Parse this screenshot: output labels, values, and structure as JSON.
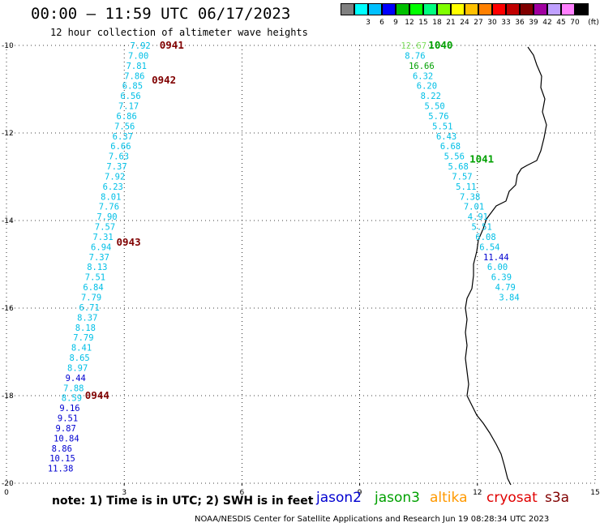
{
  "header": {
    "title": "00:00 – 11:59 UTC 06/17/2023",
    "subtitle": "12 hour collection of altimeter wave heights"
  },
  "scale": {
    "unit": "(ft)",
    "bins": [
      {
        "label": "",
        "color": "#808080"
      },
      {
        "label": "3",
        "color": "#00ffff"
      },
      {
        "label": "6",
        "color": "#00c0ff"
      },
      {
        "label": "9",
        "color": "#0000ff"
      },
      {
        "label": "12",
        "color": "#00c000"
      },
      {
        "label": "15",
        "color": "#00ff00"
      },
      {
        "label": "18",
        "color": "#00ff80"
      },
      {
        "label": "21",
        "color": "#80ff00"
      },
      {
        "label": "24",
        "color": "#ffff00"
      },
      {
        "label": "27",
        "color": "#ffc000"
      },
      {
        "label": "30",
        "color": "#ff8000"
      },
      {
        "label": "33",
        "color": "#ff0000"
      },
      {
        "label": "36",
        "color": "#c00000"
      },
      {
        "label": "39",
        "color": "#800000"
      },
      {
        "label": "42",
        "color": "#a000a0"
      },
      {
        "label": "45",
        "color": "#c0a0ff"
      },
      {
        "label": "70",
        "color": "#ff80ff"
      },
      {
        "label": "",
        "color": "#000000"
      }
    ]
  },
  "axes": {
    "lon_ticks": [
      0,
      3,
      6,
      9,
      12,
      15
    ],
    "lat_ticks": [
      -10,
      -12,
      -14,
      -16,
      -18,
      -20
    ]
  },
  "colors": {
    "cyan": "#00bfe6",
    "blue": "#0000d0",
    "lightgreen": "#80e060",
    "green": "#00a000",
    "darkred": "#800000"
  },
  "track_times": [
    {
      "text": "0941",
      "lon": 3.9,
      "lat": -10.0,
      "color": "darkred"
    },
    {
      "text": "0942",
      "lon": 3.7,
      "lat": -10.8,
      "color": "darkred"
    },
    {
      "text": "0943",
      "lon": 2.8,
      "lat": -14.5,
      "color": "darkred"
    },
    {
      "text": "0944",
      "lon": 2.0,
      "lat": -18.0,
      "color": "darkred"
    },
    {
      "text": "1040",
      "lon": 10.75,
      "lat": -10.0,
      "color": "green"
    },
    {
      "text": "1041",
      "lon": 11.8,
      "lat": -12.6,
      "color": "green"
    }
  ],
  "track_west": [
    {
      "text": "7.92",
      "lon": 3.15,
      "lat": -10.0,
      "color": "cyan"
    },
    {
      "text": "7.00",
      "lon": 3.1,
      "lat": -10.23,
      "color": "cyan"
    },
    {
      "text": "7.81",
      "lon": 3.05,
      "lat": -10.46,
      "color": "cyan"
    },
    {
      "text": "7.86",
      "lon": 3.0,
      "lat": -10.69,
      "color": "cyan"
    },
    {
      "text": "6.85",
      "lon": 2.95,
      "lat": -10.92,
      "color": "cyan"
    },
    {
      "text": "6.56",
      "lon": 2.9,
      "lat": -11.15,
      "color": "cyan"
    },
    {
      "text": "7.17",
      "lon": 2.85,
      "lat": -11.38,
      "color": "cyan"
    },
    {
      "text": "6.86",
      "lon": 2.8,
      "lat": -11.61,
      "color": "cyan"
    },
    {
      "text": "7.56",
      "lon": 2.75,
      "lat": -11.84,
      "color": "cyan"
    },
    {
      "text": "6.37",
      "lon": 2.7,
      "lat": -12.07,
      "color": "cyan"
    },
    {
      "text": "6.66",
      "lon": 2.65,
      "lat": -12.3,
      "color": "cyan"
    },
    {
      "text": "7.63",
      "lon": 2.6,
      "lat": -12.53,
      "color": "cyan"
    },
    {
      "text": "7.37",
      "lon": 2.55,
      "lat": -12.76,
      "color": "cyan"
    },
    {
      "text": "7.92",
      "lon": 2.5,
      "lat": -12.99,
      "color": "cyan"
    },
    {
      "text": "6.23",
      "lon": 2.45,
      "lat": -13.22,
      "color": "cyan"
    },
    {
      "text": "8.01",
      "lon": 2.4,
      "lat": -13.45,
      "color": "cyan"
    },
    {
      "text": "7.76",
      "lon": 2.35,
      "lat": -13.68,
      "color": "cyan"
    },
    {
      "text": "7.90",
      "lon": 2.3,
      "lat": -13.91,
      "color": "cyan"
    },
    {
      "text": "7.57",
      "lon": 2.25,
      "lat": -14.14,
      "color": "cyan"
    },
    {
      "text": "7.31",
      "lon": 2.2,
      "lat": -14.37,
      "color": "cyan"
    },
    {
      "text": "6.94",
      "lon": 2.15,
      "lat": -14.6,
      "color": "cyan"
    },
    {
      "text": "7.37",
      "lon": 2.1,
      "lat": -14.83,
      "color": "cyan"
    },
    {
      "text": "8.13",
      "lon": 2.05,
      "lat": -15.06,
      "color": "cyan"
    },
    {
      "text": "7.51",
      "lon": 2.0,
      "lat": -15.29,
      "color": "cyan"
    },
    {
      "text": "6.84",
      "lon": 1.95,
      "lat": -15.52,
      "color": "cyan"
    },
    {
      "text": "7.79",
      "lon": 1.9,
      "lat": -15.75,
      "color": "cyan"
    },
    {
      "text": "6.71",
      "lon": 1.85,
      "lat": -15.98,
      "color": "cyan"
    },
    {
      "text": "8.37",
      "lon": 1.8,
      "lat": -16.21,
      "color": "cyan"
    },
    {
      "text": "8.18",
      "lon": 1.75,
      "lat": -16.44,
      "color": "cyan"
    },
    {
      "text": "7.79",
      "lon": 1.7,
      "lat": -16.67,
      "color": "cyan"
    },
    {
      "text": "8.41",
      "lon": 1.65,
      "lat": -16.9,
      "color": "cyan"
    },
    {
      "text": "8.65",
      "lon": 1.6,
      "lat": -17.13,
      "color": "cyan"
    },
    {
      "text": "8.97",
      "lon": 1.55,
      "lat": -17.36,
      "color": "cyan"
    },
    {
      "text": "9.44",
      "lon": 1.5,
      "lat": -17.59,
      "color": "blue"
    },
    {
      "text": "7.88",
      "lon": 1.45,
      "lat": -17.82,
      "color": "cyan"
    },
    {
      "text": "8.59",
      "lon": 1.4,
      "lat": -18.05,
      "color": "cyan"
    },
    {
      "text": "9.16",
      "lon": 1.35,
      "lat": -18.28,
      "color": "blue"
    },
    {
      "text": "9.51",
      "lon": 1.3,
      "lat": -18.51,
      "color": "blue"
    },
    {
      "text": "9.87",
      "lon": 1.25,
      "lat": -18.74,
      "color": "blue"
    },
    {
      "text": "10.84",
      "lon": 1.2,
      "lat": -18.97,
      "color": "blue"
    },
    {
      "text": "8.86",
      "lon": 1.15,
      "lat": -19.2,
      "color": "blue"
    },
    {
      "text": "10.15",
      "lon": 1.1,
      "lat": -19.43,
      "color": "blue"
    },
    {
      "text": "11.38",
      "lon": 1.05,
      "lat": -19.66,
      "color": "blue"
    }
  ],
  "track_east": [
    {
      "text": "12.67",
      "lon": 10.05,
      "lat": -10.0,
      "color": "lightgreen"
    },
    {
      "text": "8.76",
      "lon": 10.15,
      "lat": -10.23,
      "color": "cyan"
    },
    {
      "text": "16.66",
      "lon": 10.25,
      "lat": -10.46,
      "color": "green"
    },
    {
      "text": "6.32",
      "lon": 10.35,
      "lat": -10.69,
      "color": "cyan"
    },
    {
      "text": "6.20",
      "lon": 10.45,
      "lat": -10.92,
      "color": "cyan"
    },
    {
      "text": "8.22",
      "lon": 10.55,
      "lat": -11.15,
      "color": "cyan"
    },
    {
      "text": "5.50",
      "lon": 10.65,
      "lat": -11.38,
      "color": "cyan"
    },
    {
      "text": "5.76",
      "lon": 10.75,
      "lat": -11.61,
      "color": "cyan"
    },
    {
      "text": "5.51",
      "lon": 10.85,
      "lat": -11.84,
      "color": "cyan"
    },
    {
      "text": "6.43",
      "lon": 10.95,
      "lat": -12.07,
      "color": "cyan"
    },
    {
      "text": "6.68",
      "lon": 11.05,
      "lat": -12.3,
      "color": "cyan"
    },
    {
      "text": "5.56",
      "lon": 11.15,
      "lat": -12.53,
      "color": "cyan"
    },
    {
      "text": "5.68",
      "lon": 11.25,
      "lat": -12.76,
      "color": "cyan"
    },
    {
      "text": "7.57",
      "lon": 11.35,
      "lat": -12.99,
      "color": "cyan"
    },
    {
      "text": "5.11",
      "lon": 11.45,
      "lat": -13.22,
      "color": "cyan"
    },
    {
      "text": "7.38",
      "lon": 11.55,
      "lat": -13.45,
      "color": "cyan"
    },
    {
      "text": "7.01",
      "lon": 11.65,
      "lat": -13.68,
      "color": "cyan"
    },
    {
      "text": "4.91",
      "lon": 11.75,
      "lat": -13.91,
      "color": "cyan"
    },
    {
      "text": "5.51",
      "lon": 11.85,
      "lat": -14.14,
      "color": "cyan"
    },
    {
      "text": "6.08",
      "lon": 11.95,
      "lat": -14.37,
      "color": "cyan"
    },
    {
      "text": "6.54",
      "lon": 12.05,
      "lat": -14.6,
      "color": "cyan"
    },
    {
      "text": "11.44",
      "lon": 12.15,
      "lat": -14.83,
      "color": "blue"
    },
    {
      "text": "6.00",
      "lon": 12.25,
      "lat": -15.06,
      "color": "cyan"
    },
    {
      "text": "6.39",
      "lon": 12.35,
      "lat": -15.29,
      "color": "cyan"
    },
    {
      "text": "4.79",
      "lon": 12.45,
      "lat": -15.52,
      "color": "cyan"
    },
    {
      "text": "3.84",
      "lon": 12.55,
      "lat": -15.75,
      "color": "cyan"
    }
  ],
  "footer": {
    "note": "note: 1) Time is in UTC; 2) SWH is in feet",
    "satellites": [
      {
        "name": "jason2",
        "color": "#0000d0"
      },
      {
        "name": "jason3",
        "color": "#00a000"
      },
      {
        "name": "altika",
        "color": "#ff9900"
      },
      {
        "name": "cryosat",
        "color": "#e00000"
      },
      {
        "name": "s3a",
        "color": "#800000"
      }
    ],
    "credit": "NOAA/NESDIS Center for Satellite Applications and Research   Jun 19 08:28:34 UTC 2023"
  }
}
